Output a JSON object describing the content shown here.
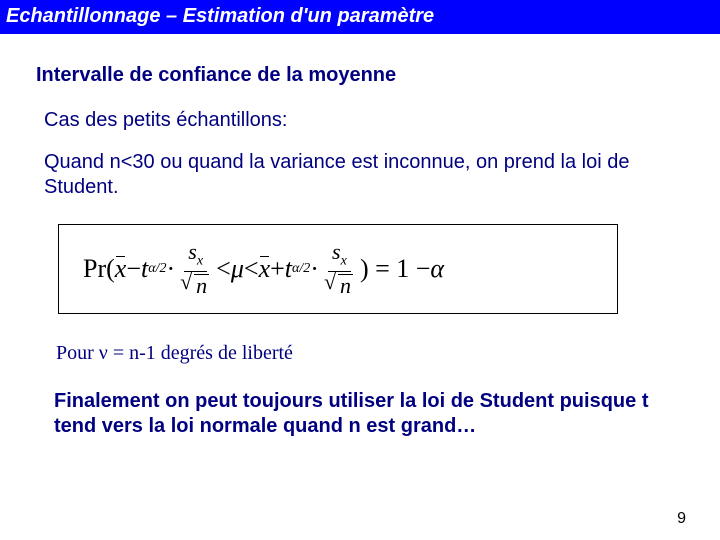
{
  "header": {
    "title": "Echantillonnage – Estimation d'un paramètre"
  },
  "section": {
    "title": "Intervalle de confiance de la moyenne"
  },
  "subtitle": "Cas des petits échantillons:",
  "body": "Quand n<30 ou quand la variance est inconnue, on prend la loi de Student.",
  "formula": {
    "pr": "Pr(",
    "xbar1": "x",
    "minus1": " − ",
    "t1": "t",
    "tsub1": "α/2",
    "dot1": " · ",
    "sx1_num": "s",
    "sx1_numsub": "x",
    "sx1_den_n": "n",
    "lt1": " < ",
    "mu": "μ",
    "lt2": " < ",
    "xbar2": "x",
    "plus1": " + ",
    "t2": "t",
    "tsub2": "α/2",
    "dot2": " · ",
    "sx2_num": "s",
    "sx2_numsub": "x",
    "sx2_den_n": "n",
    "close": ") = 1 − ",
    "alpha": "α"
  },
  "pour": "Pour ν = n-1 degrés de liberté",
  "final": "Finalement on peut toujours utiliser la loi de Student puisque t tend vers la loi normale quand n est grand…",
  "page": "9",
  "colors": {
    "header_bg": "#0000ff",
    "header_text": "#ffffff",
    "body_text": "#000080",
    "page_text": "#000000",
    "border": "#000000",
    "background": "#ffffff"
  }
}
